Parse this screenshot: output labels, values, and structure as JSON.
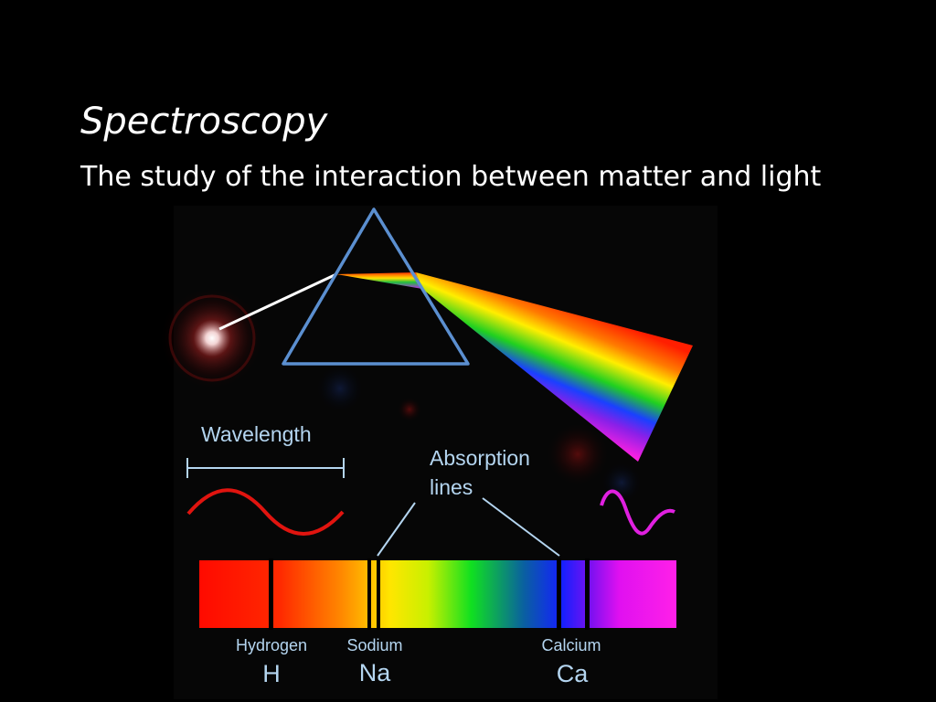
{
  "slide": {
    "title": "Spectroscopy",
    "subtitle": "The study of the interaction between matter and light"
  },
  "figure": {
    "wavelength_label": "Wavelength",
    "absorption_label_line1": "Absorption",
    "absorption_label_line2": "lines",
    "elements": [
      {
        "name": "Hydrogen",
        "symbol": "H"
      },
      {
        "name": "Sodium",
        "symbol": "Na"
      },
      {
        "name": "Calcium",
        "symbol": "Ca"
      }
    ]
  },
  "colors": {
    "prism_outline": "#5b8fd0",
    "annotation": "#b4d5f0",
    "long_wave": "#e0140f",
    "short_wave": "#e020e0"
  }
}
